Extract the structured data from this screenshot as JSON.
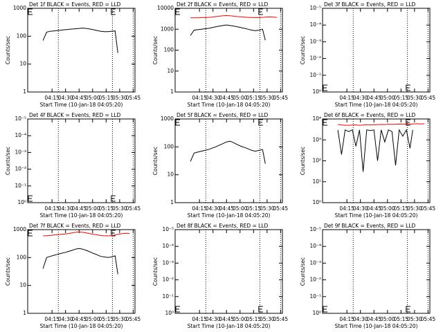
{
  "chart_data": [
    {
      "type": "line",
      "title": "Det 1f BLACK = Events, RED = LLD",
      "xlabel": "Start Time (10-Jan-18 04:05:20)",
      "ylabel": "Counts/sec",
      "log_y": true,
      "xlim": [
        "03:48",
        "05:47"
      ],
      "xticks": [
        "04:15",
        "04:30",
        "04:45",
        "05:00",
        "05:15",
        "05:30",
        "05:45"
      ],
      "ylim": [
        1,
        1000
      ],
      "yticks": [
        1,
        10,
        100,
        1000
      ],
      "x": [
        "04:05",
        "04:09",
        "04:13",
        "04:17",
        "04:21",
        "04:25",
        "04:29",
        "04:33",
        "04:37",
        "04:41",
        "04:45",
        "04:49",
        "04:53",
        "04:57",
        "05:01",
        "05:05",
        "05:09",
        "05:13",
        "05:17",
        "05:21",
        "05:25",
        "05:28",
        "05:33",
        "05:37",
        "05:41"
      ],
      "series": [
        {
          "name": "Events",
          "color": "#000000",
          "values": [
            70,
            140,
            150,
            155,
            160,
            165,
            170,
            175,
            180,
            185,
            190,
            195,
            190,
            180,
            170,
            160,
            150,
            145,
            145,
            150,
            155,
            25,
            null,
            null,
            null
          ]
        }
      ]
    },
    {
      "type": "line",
      "title": "Det 2f BLACK = Events, RED = LLD",
      "xlabel": "Start Time (10-Jan-18 04:05:20)",
      "ylabel": "Counts/sec",
      "log_y": true,
      "xlim": [
        "03:48",
        "05:47"
      ],
      "xticks": [
        "04:15",
        "04:30",
        "04:45",
        "05:00",
        "05:15",
        "05:30",
        "05:45"
      ],
      "ylim": [
        1,
        10000
      ],
      "yticks": [
        1,
        10,
        100,
        1000,
        10000
      ],
      "x": [
        "04:05",
        "04:09",
        "04:13",
        "04:17",
        "04:21",
        "04:25",
        "04:29",
        "04:33",
        "04:37",
        "04:41",
        "04:45",
        "04:49",
        "04:53",
        "04:57",
        "05:01",
        "05:05",
        "05:09",
        "05:13",
        "05:17",
        "05:21",
        "05:25",
        "05:28",
        "05:33",
        "05:37",
        "05:41"
      ],
      "series": [
        {
          "name": "Events",
          "color": "#000000",
          "values": [
            500,
            900,
            950,
            1000,
            1050,
            1100,
            1200,
            1300,
            1400,
            1500,
            1600,
            1500,
            1400,
            1300,
            1200,
            1100,
            1000,
            900,
            850,
            900,
            1000,
            300,
            null,
            null,
            null
          ]
        },
        {
          "name": "LLD",
          "color": "#ff0000",
          "values": [
            3500,
            3500,
            3500,
            3600,
            3600,
            3700,
            3800,
            4000,
            4200,
            4400,
            4500,
            4400,
            4200,
            4000,
            3900,
            3800,
            3700,
            3600,
            3600,
            3600,
            3700,
            3800,
            3900,
            3800,
            3700
          ]
        }
      ]
    },
    {
      "type": "line",
      "title": "Det 3f BLACK = Events, RED = LLD",
      "xlabel": "Start Time (10-Jan-18 04:05:20)",
      "ylabel": "Counts/sec",
      "log_y": true,
      "xlim": [
        "03:48",
        "05:47"
      ],
      "xticks": [
        "04:15",
        "04:30",
        "04:45",
        "05:00",
        "05:15",
        "05:30",
        "05:45"
      ],
      "ylim": [
        1,
        1e-05
      ],
      "yticks": [
        {
          "value": 1,
          "label": "10⁰"
        },
        {
          "value": 0.1,
          "label": "10⁻¹"
        },
        {
          "value": 0.01,
          "label": "10⁻²"
        },
        {
          "value": 0.001,
          "label": "10⁻³"
        },
        {
          "value": 0.0001,
          "label": "10⁻⁴"
        },
        {
          "value": 1e-05,
          "label": "10⁻⁵"
        }
      ],
      "x": [],
      "series": []
    },
    {
      "type": "line",
      "title": "Det 4f BLACK = Events, RED = LLD",
      "xlabel": "Start Time (10-Jan-18 04:05:20)",
      "ylabel": "Counts/sec",
      "log_y": true,
      "xlim": [
        "03:48",
        "05:47"
      ],
      "xticks": [
        "04:15",
        "04:30",
        "04:45",
        "05:00",
        "05:15",
        "05:30",
        "05:45"
      ],
      "ylim": [
        1,
        1e-05
      ],
      "yticks": [
        {
          "value": 1,
          "label": "10⁰"
        },
        {
          "value": 0.1,
          "label": "10⁻¹"
        },
        {
          "value": 0.01,
          "label": "10⁻²"
        },
        {
          "value": 0.001,
          "label": "10⁻³"
        },
        {
          "value": 0.0001,
          "label": "10⁻⁴"
        },
        {
          "value": 1e-05,
          "label": "10⁻⁵"
        }
      ],
      "x": [],
      "series": []
    },
    {
      "type": "line",
      "title": "Det 5f BLACK = Events, RED = LLD",
      "xlabel": "Start Time (10-Jan-18 04:05:20)",
      "ylabel": "Counts/sec",
      "log_y": true,
      "xlim": [
        "03:48",
        "05:47"
      ],
      "xticks": [
        "04:15",
        "04:30",
        "04:45",
        "05:00",
        "05:15",
        "05:30",
        "05:45"
      ],
      "ylim": [
        1,
        1000
      ],
      "yticks": [
        1,
        10,
        100,
        1000
      ],
      "x": [
        "04:05",
        "04:09",
        "04:13",
        "04:17",
        "04:21",
        "04:25",
        "04:29",
        "04:33",
        "04:37",
        "04:41",
        "04:45",
        "04:49",
        "04:53",
        "04:57",
        "05:01",
        "05:05",
        "05:09",
        "05:13",
        "05:17",
        "05:21",
        "05:25",
        "05:28",
        "05:33",
        "05:37",
        "05:41"
      ],
      "series": [
        {
          "name": "Events",
          "color": "#000000",
          "values": [
            30,
            60,
            65,
            70,
            75,
            80,
            90,
            100,
            115,
            130,
            150,
            160,
            140,
            120,
            105,
            95,
            85,
            75,
            70,
            75,
            80,
            25,
            null,
            null,
            null
          ]
        }
      ]
    },
    {
      "type": "line",
      "title": "Det 6f BLACK = Events, RED = LLD",
      "xlabel": "Start Time (10-Jan-18 04:05:20)",
      "ylabel": "Counts/sec",
      "log_y": true,
      "xlim": [
        "03:48",
        "05:47"
      ],
      "xticks": [
        "04:15",
        "04:30",
        "04:45",
        "05:00",
        "05:15",
        "05:30",
        "05:45"
      ],
      "ylim": [
        1,
        10000
      ],
      "yticks": [
        {
          "value": 1,
          "label": "10⁰"
        },
        {
          "value": 10,
          "label": "10¹"
        },
        {
          "value": 100,
          "label": "10²"
        },
        {
          "value": 1000,
          "label": "10³"
        },
        {
          "value": 10000,
          "label": "10⁴"
        }
      ],
      "x": [
        "04:05",
        "04:09",
        "04:13",
        "04:17",
        "04:21",
        "04:25",
        "04:29",
        "04:33",
        "04:37",
        "04:41",
        "04:45",
        "04:49",
        "04:53",
        "04:57",
        "05:01",
        "05:05",
        "05:09",
        "05:13",
        "05:17",
        "05:21",
        "05:25",
        "05:28",
        "05:33",
        "05:37",
        "05:41"
      ],
      "series": [
        {
          "name": "Events",
          "color": "#000000",
          "values": [
            3000,
            200,
            3000,
            2500,
            3000,
            500,
            3000,
            30,
            3000,
            2800,
            3000,
            100,
            3000,
            800,
            3000,
            2500,
            60,
            3000,
            1500,
            3000,
            400,
            3000,
            null,
            null,
            null
          ]
        },
        {
          "name": "LLD",
          "color": "#ff0000",
          "values": [
            5500,
            5200,
            5000,
            5000,
            5100,
            5200,
            5000,
            5100,
            5300,
            5200,
            5400,
            5300,
            5500,
            5400,
            5600,
            5500,
            5600,
            5700,
            5600,
            5800,
            5700,
            5800,
            5900,
            5800,
            5900
          ]
        }
      ]
    },
    {
      "type": "line",
      "title": "Det 7f BLACK = Events, RED = LLD",
      "xlabel": "Start Time (10-Jan-18 04:05:20)",
      "ylabel": "Counts/sec",
      "log_y": true,
      "xlim": [
        "03:48",
        "05:47"
      ],
      "xticks": [
        "04:15",
        "04:30",
        "04:45",
        "05:00",
        "05:15",
        "05:30",
        "05:45"
      ],
      "ylim": [
        1,
        1000
      ],
      "yticks": [
        1,
        10,
        100,
        1000
      ],
      "x": [
        "04:05",
        "04:09",
        "04:13",
        "04:17",
        "04:21",
        "04:25",
        "04:29",
        "04:33",
        "04:37",
        "04:41",
        "04:45",
        "04:49",
        "04:53",
        "04:57",
        "05:01",
        "05:05",
        "05:09",
        "05:13",
        "05:17",
        "05:21",
        "05:25",
        "05:28",
        "05:33",
        "05:37",
        "05:41"
      ],
      "series": [
        {
          "name": "Events",
          "color": "#000000",
          "values": [
            40,
            100,
            110,
            120,
            130,
            140,
            150,
            165,
            180,
            200,
            210,
            200,
            180,
            160,
            140,
            125,
            110,
            105,
            100,
            105,
            115,
            25,
            null,
            null,
            null
          ]
        },
        {
          "name": "LLD",
          "color": "#ff0000",
          "values": [
            600,
            600,
            620,
            640,
            660,
            680,
            700,
            720,
            760,
            800,
            820,
            800,
            760,
            720,
            680,
            650,
            620,
            600,
            600,
            610,
            640,
            680,
            720,
            740,
            720
          ]
        }
      ]
    },
    {
      "type": "line",
      "title": "Det 8f BLACK = Events, RED = LLD",
      "xlabel": "Start Time (10-Jan-18 04:05:20)",
      "ylabel": "Counts/sec",
      "log_y": true,
      "xlim": [
        "03:48",
        "05:47"
      ],
      "xticks": [
        "04:15",
        "04:30",
        "04:45",
        "05:00",
        "05:15",
        "05:30",
        "05:45"
      ],
      "ylim": [
        1,
        1e-05
      ],
      "yticks": [
        {
          "value": 1,
          "label": "10⁰"
        },
        {
          "value": 0.1,
          "label": "10⁻¹"
        },
        {
          "value": 0.01,
          "label": "10⁻²"
        },
        {
          "value": 0.001,
          "label": "10⁻³"
        },
        {
          "value": 0.0001,
          "label": "10⁻⁴"
        },
        {
          "value": 1e-05,
          "label": "10⁻⁵"
        }
      ],
      "x": [],
      "series": []
    },
    {
      "type": "line",
      "title": "Det 9f BLACK = Events, RED = LLD",
      "xlabel": "Start Time (10-Jan-18 04:05:20)",
      "ylabel": "Counts/sec",
      "log_y": true,
      "xlim": [
        "03:48",
        "05:47"
      ],
      "xticks": [
        "04:15",
        "04:30",
        "04:45",
        "05:00",
        "05:15",
        "05:30",
        "05:45"
      ],
      "ylim": [
        1,
        1e-05
      ],
      "yticks": [
        {
          "value": 1,
          "label": "10⁰"
        },
        {
          "value": 0.1,
          "label": "10⁻¹"
        },
        {
          "value": 0.01,
          "label": "10⁻²"
        },
        {
          "value": 0.001,
          "label": "10⁻³"
        },
        {
          "value": 0.0001,
          "label": "10⁻⁴"
        },
        {
          "value": 1e-05,
          "label": "10⁻⁵"
        }
      ],
      "x": [],
      "series": []
    }
  ]
}
